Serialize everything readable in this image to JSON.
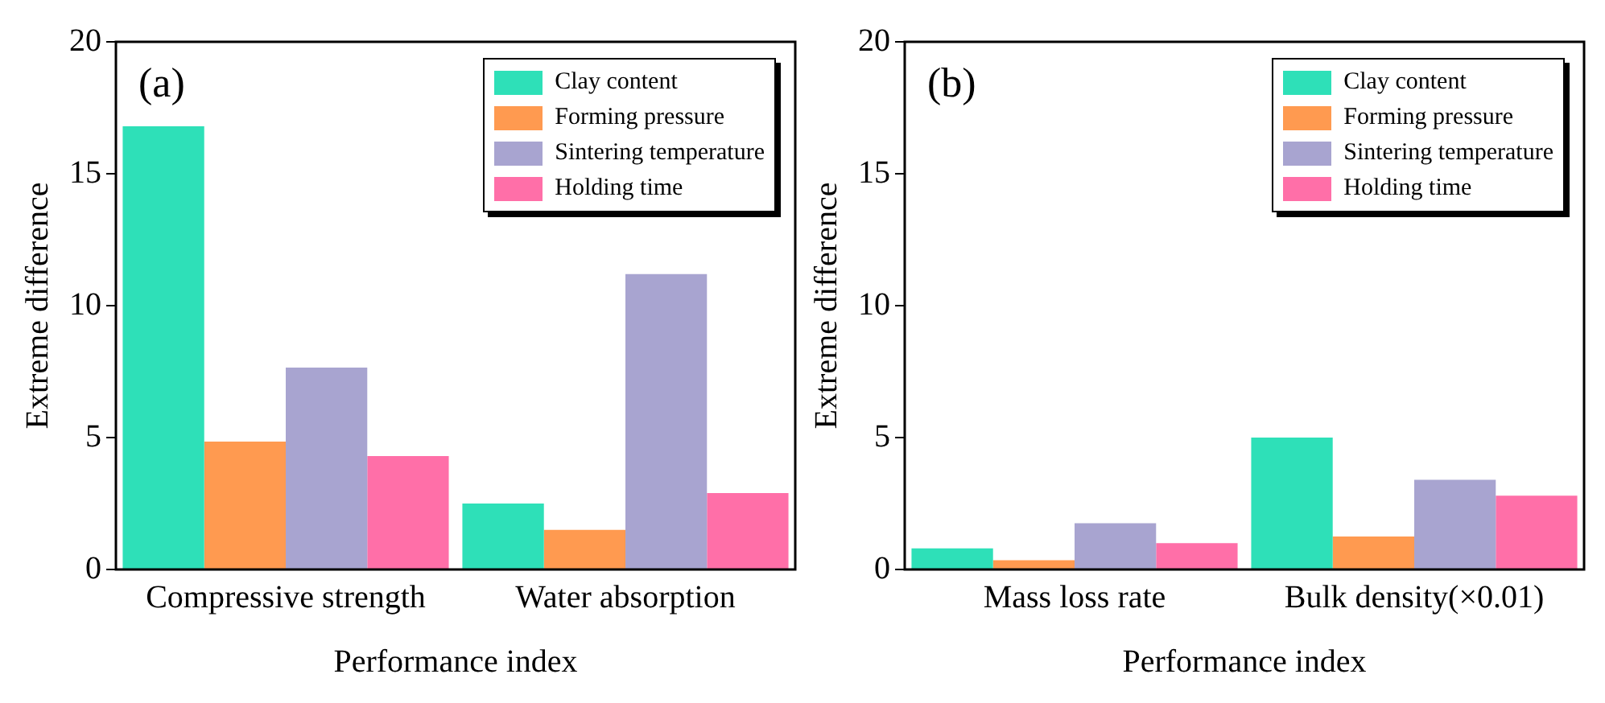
{
  "chart_data": [
    {
      "type": "bar",
      "categories": [
        "Compressive strength",
        "Water absorption"
      ],
      "xlabel": "Performance index",
      "ylabel": "Extreme difference",
      "ylim": [
        0,
        20
      ],
      "yticks": [
        0,
        5,
        10,
        15,
        20
      ],
      "legend": "top right",
      "annotations": [
        "(a)"
      ],
      "series": [
        {
          "name": "Clay content",
          "color": "#2ee0b8",
          "values": [
            16.8,
            2.5
          ]
        },
        {
          "name": "Forming pressure",
          "color": "#ff9a50",
          "values": [
            4.85,
            1.5
          ]
        },
        {
          "name": "Sintering temperature",
          "color": "#a8a4d0",
          "values": [
            7.65,
            11.2
          ]
        },
        {
          "name": "Holding time",
          "color": "#ff6fa8",
          "values": [
            4.3,
            2.9
          ]
        }
      ]
    },
    {
      "type": "bar",
      "categories": [
        "Mass loss rate",
        "Bulk density(×0.01)"
      ],
      "xlabel": "Performance index",
      "ylabel": "Extreme difference",
      "ylim": [
        0,
        20
      ],
      "yticks": [
        0,
        5,
        10,
        15,
        20
      ],
      "legend": "top right",
      "annotations": [
        "(b)"
      ],
      "series": [
        {
          "name": "Clay content",
          "color": "#2ee0b8",
          "values": [
            0.8,
            5.0
          ]
        },
        {
          "name": "Forming pressure",
          "color": "#ff9a50",
          "values": [
            0.35,
            1.25
          ]
        },
        {
          "name": "Sintering temperature",
          "color": "#a8a4d0",
          "values": [
            1.75,
            3.4
          ]
        },
        {
          "name": "Holding time",
          "color": "#ff6fa8",
          "values": [
            1.0,
            2.8
          ]
        }
      ]
    }
  ]
}
